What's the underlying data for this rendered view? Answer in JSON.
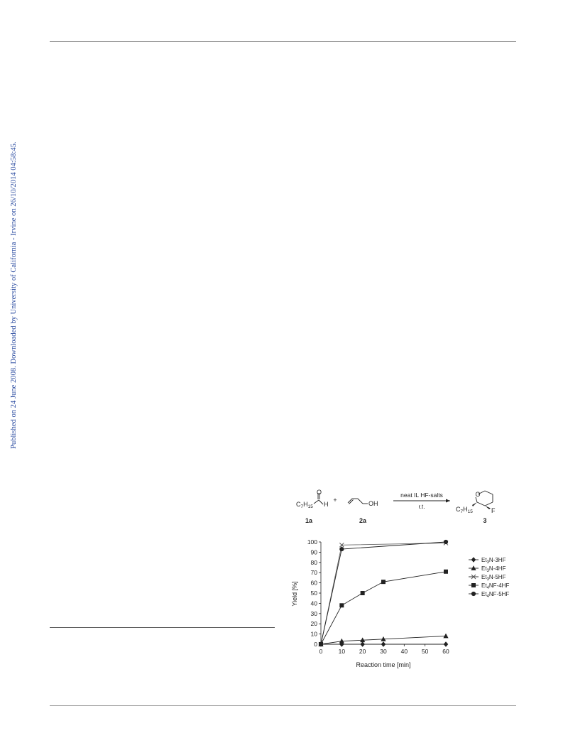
{
  "sidebar": {
    "published_text": "Published on 24 June 2008. Downloaded by University of California - Irvine on 26/10/2014 04:58:45."
  },
  "scheme": {
    "reactant_1_formula": "C7H15",
    "reactant_1_O": "O",
    "reactant_1_H": "H",
    "reactant_1_label": "1a",
    "plus": "+",
    "reactant_2_OH": "OH",
    "reactant_2_label": "2a",
    "reagent_label": "neat IL HF-salts",
    "conditions_label": "r.t.",
    "product_formula": "C7H15",
    "product_O": "O",
    "product_F": "F",
    "product_label": "3"
  },
  "chart_data": {
    "type": "line",
    "x": [
      0,
      10,
      20,
      30,
      60
    ],
    "x_ticks": [
      "0",
      "10",
      "20",
      "30",
      "40",
      "50",
      "60"
    ],
    "xlim": [
      0,
      60
    ],
    "y_ticks": [
      "0",
      "10",
      "20",
      "30",
      "40",
      "50",
      "60",
      "70",
      "80",
      "90",
      "100"
    ],
    "ylim": [
      0,
      100
    ],
    "xlabel": "Reaction time [min]",
    "ylabel": "Yield [%]",
    "legend_position": "right",
    "grid": false,
    "series": [
      {
        "name": "Et3N-3HF",
        "marker": "diamond",
        "x": [
          0,
          10,
          20,
          30,
          60
        ],
        "values": [
          0,
          0,
          0,
          0,
          0
        ]
      },
      {
        "name": "Et3N-4HF",
        "marker": "triangle",
        "x": [
          0,
          10,
          20,
          30,
          60
        ],
        "values": [
          0,
          3,
          4,
          5,
          8
        ]
      },
      {
        "name": "Et3N-5HF",
        "marker": "x",
        "x": [
          0,
          10,
          60
        ],
        "values": [
          0,
          97,
          99
        ]
      },
      {
        "name": "Et4NF-4HF",
        "marker": "square",
        "x": [
          0,
          10,
          20,
          30,
          60
        ],
        "values": [
          0,
          38,
          50,
          61,
          71
        ]
      },
      {
        "name": "Et4NF-5HF",
        "marker": "circle",
        "x": [
          0,
          10,
          60
        ],
        "values": [
          0,
          93,
          100
        ]
      }
    ]
  }
}
